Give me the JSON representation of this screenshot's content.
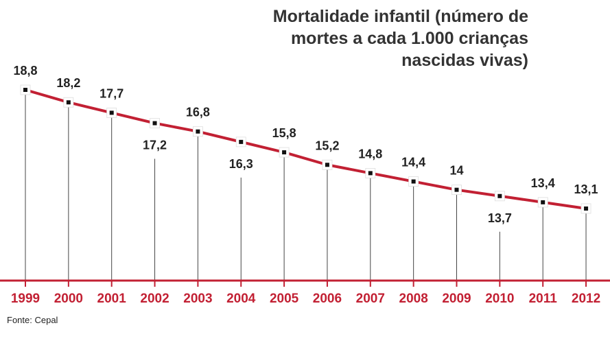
{
  "chart_data": {
    "type": "line",
    "title": [
      "Mortalidade infantil (número de",
      "mortes a cada 1.000 crianças",
      "nascidas vivas)"
    ],
    "categories": [
      "1999",
      "2000",
      "2001",
      "2002",
      "2003",
      "2004",
      "2005",
      "2006",
      "2007",
      "2008",
      "2009",
      "2010",
      "2011",
      "2012"
    ],
    "values": [
      18.8,
      18.2,
      17.7,
      17.2,
      16.8,
      16.3,
      15.8,
      15.2,
      14.8,
      14.4,
      14.0,
      13.7,
      13.4,
      13.1
    ],
    "value_labels": [
      "18,8",
      "18,2",
      "17,7",
      "17,2",
      "16,8",
      "16,3",
      "15,8",
      "15,2",
      "14,8",
      "14,4",
      "14",
      "13,7",
      "13,4",
      "13,1"
    ],
    "label_position": [
      "above",
      "above",
      "above",
      "below",
      "above",
      "below",
      "above",
      "above",
      "above",
      "above",
      "above",
      "below",
      "above",
      "above"
    ],
    "series_name": "Mortalidade infantil",
    "xlabel": "",
    "ylabel": "",
    "ylim": [
      13.1,
      18.8
    ],
    "grid": false,
    "colors": {
      "line": "#c22033",
      "axis": "#c22033",
      "marker_fill": "#ffffff",
      "marker_center": "#111111",
      "year_text": "#c22033",
      "drop_line": "#444444"
    }
  },
  "source": "Fonte: Cepal"
}
